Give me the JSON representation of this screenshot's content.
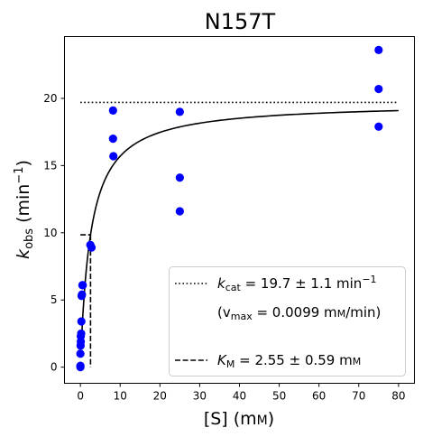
{
  "chart_data": {
    "type": "scatter",
    "title": "N157T",
    "xlabel": {
      "main": "[S] (m",
      "small": "M",
      "end": ")"
    },
    "ylabel": {
      "k": "k",
      "sub": "obs",
      "main": " (min",
      "sup": "−1",
      "end": ")"
    },
    "xlim": [
      -4,
      84
    ],
    "ylim": [
      -1.2,
      24.6
    ],
    "xticks": [
      0,
      10,
      20,
      30,
      40,
      50,
      60,
      70,
      80
    ],
    "yticks": [
      0,
      5,
      10,
      15,
      20
    ],
    "series": [
      {
        "kind": "points",
        "color": "#0000ff",
        "x": [
          0,
          0,
          0,
          0.05,
          0.1,
          0.1,
          0.2,
          0.25,
          0.3,
          0.4,
          0.5,
          0.6,
          2.5,
          2.8,
          8.2,
          8.2,
          8.3,
          25,
          25,
          25,
          75,
          75,
          75
        ],
        "y": [
          0,
          0.1,
          1.0,
          1.6,
          1.9,
          2.3,
          2.5,
          3.4,
          5.3,
          5.4,
          6.1,
          6.1,
          9.1,
          8.9,
          19.1,
          17.0,
          15.7,
          19.0,
          14.1,
          11.6,
          23.6,
          20.7,
          17.9
        ]
      },
      {
        "kind": "fit",
        "color": "#000000",
        "kcat": 19.7,
        "km": 2.55,
        "x_range": [
          0.3,
          80
        ]
      },
      {
        "kind": "kcat-line",
        "color": "#000000",
        "y": 19.7,
        "x_range": [
          0,
          80
        ]
      },
      {
        "kind": "km-lines",
        "color": "#000000",
        "km": 2.55,
        "half_kcat": 9.85
      }
    ],
    "legend": {
      "position": "bottom-right",
      "entries": [
        {
          "style": "dotted",
          "k": "k",
          "sub": "cat",
          "text": " = 19.7 ± 1.1 min",
          "sup": "−1"
        },
        {
          "style": "none",
          "text": "(v",
          "sub": "max",
          "text2": " = 0.0099 m",
          "small": "M",
          "text3": "/min)"
        },
        {
          "style": "dashed",
          "k": "K",
          "sub": "M",
          "text": " = 2.55 ± 0.59 m",
          "small": "M"
        }
      ]
    }
  }
}
